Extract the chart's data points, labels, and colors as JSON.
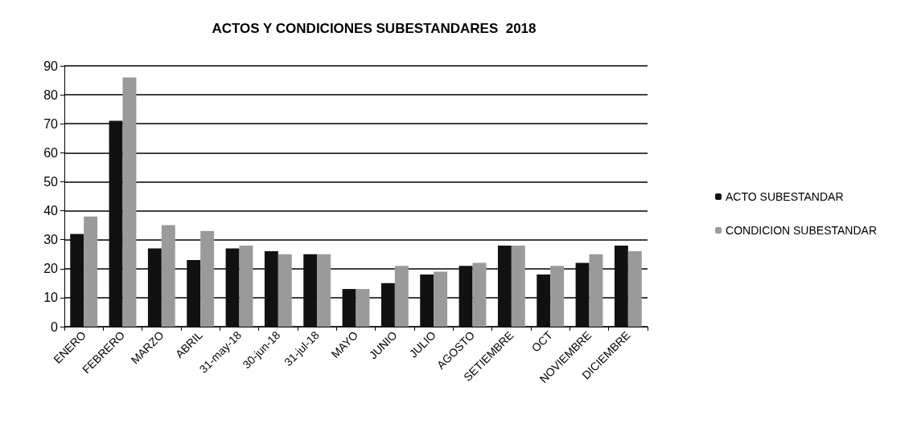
{
  "chart_data": {
    "type": "bar",
    "title": "ACTOS Y CONDICIONES SUBESTANDARES  2018",
    "categories": [
      "ENERO",
      "FEBRERO",
      "MARZO",
      "ABRIL",
      "31-may-18",
      "30-jun-18",
      "31-jul-18",
      "MAYO",
      "JUNIO",
      "JULIO",
      "AGOSTO",
      "SETIEMBRE",
      "OCT",
      "NOVIEMBRE",
      "DICIEMBRE"
    ],
    "series": [
      {
        "name": "ACTO SUBESTANDAR",
        "color": "#111111",
        "values": [
          32,
          71,
          27,
          23,
          27,
          26,
          25,
          13,
          15,
          18,
          21,
          28,
          18,
          22,
          28
        ]
      },
      {
        "name": "CONDICION SUBESTANDAR",
        "color": "#9a9a9a",
        "values": [
          38,
          86,
          35,
          33,
          28,
          25,
          25,
          13,
          21,
          19,
          22,
          28,
          21,
          25,
          26
        ]
      }
    ],
    "ylim": [
      0,
      90
    ],
    "yticks": [
      0,
      10,
      20,
      30,
      40,
      50,
      60,
      70,
      80,
      90
    ],
    "grid": "y",
    "legend": "right"
  }
}
